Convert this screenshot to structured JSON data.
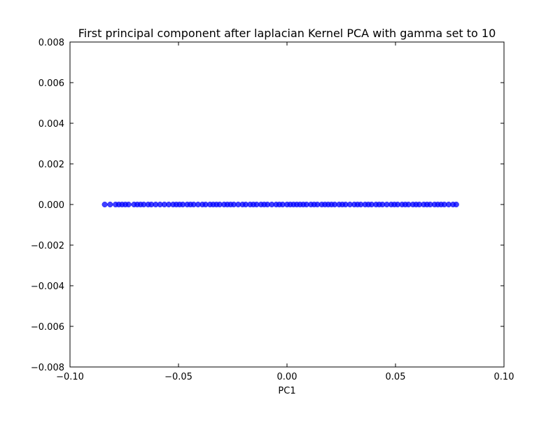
{
  "chart_data": {
    "type": "scatter",
    "title": "First principal component after laplacian Kernel PCA with gamma set to 10",
    "xlabel": "PC1",
    "ylabel": "",
    "xlim": [
      -0.1,
      0.1
    ],
    "ylim": [
      -0.008,
      0.008
    ],
    "xticks": [
      -0.1,
      -0.05,
      0.0,
      0.05,
      0.1
    ],
    "xtick_labels": [
      "−0.10",
      "−0.05",
      "0.00",
      "0.05",
      "0.10"
    ],
    "yticks": [
      0.008,
      0.006,
      0.004,
      0.002,
      0.0,
      -0.002,
      -0.004,
      -0.006,
      -0.008
    ],
    "ytick_labels": [
      "0.008",
      "0.006",
      "0.004",
      "0.002",
      "0.000",
      "−0.002",
      "−0.004",
      "−0.006",
      "−0.008"
    ],
    "grid": false,
    "legend": "none",
    "marker_color": "#0000ff",
    "x_range_of_points": [
      -0.084,
      0.078
    ],
    "points": {
      "x": [
        -0.084,
        -0.0815,
        -0.079,
        -0.0775,
        -0.076,
        -0.0745,
        -0.073,
        -0.0705,
        -0.069,
        -0.0675,
        -0.066,
        -0.064,
        -0.0625,
        -0.0605,
        -0.0585,
        -0.0565,
        -0.0545,
        -0.0525,
        -0.051,
        -0.0495,
        -0.048,
        -0.046,
        -0.0445,
        -0.043,
        -0.041,
        -0.039,
        -0.0375,
        -0.0355,
        -0.034,
        -0.0325,
        -0.031,
        -0.029,
        -0.0275,
        -0.026,
        -0.0245,
        -0.0225,
        -0.0205,
        -0.019,
        -0.017,
        -0.0155,
        -0.014,
        -0.012,
        -0.0105,
        -0.009,
        -0.007,
        -0.005,
        -0.0035,
        -0.002,
        0.0,
        0.0015,
        0.003,
        0.0045,
        0.006,
        0.0075,
        0.009,
        0.011,
        0.0125,
        0.014,
        0.016,
        0.0175,
        0.019,
        0.0205,
        0.022,
        0.024,
        0.0255,
        0.027,
        0.029,
        0.031,
        0.0325,
        0.034,
        0.036,
        0.0375,
        0.039,
        0.041,
        0.0425,
        0.044,
        0.046,
        0.048,
        0.0495,
        0.051,
        0.053,
        0.0545,
        0.056,
        0.058,
        0.0595,
        0.061,
        0.063,
        0.0645,
        0.066,
        0.068,
        0.0695,
        0.071,
        0.0725,
        0.0745,
        0.0765,
        0.078
      ],
      "y": [
        0,
        0,
        0,
        0,
        0,
        0,
        0,
        0,
        0,
        0,
        0,
        0,
        0,
        0,
        0,
        0,
        0,
        0,
        0,
        0,
        0,
        0,
        0,
        0,
        0,
        0,
        0,
        0,
        0,
        0,
        0,
        0,
        0,
        0,
        0,
        0,
        0,
        0,
        0,
        0,
        0,
        0,
        0,
        0,
        0,
        0,
        0,
        0,
        0,
        0,
        0,
        0,
        0,
        0,
        0,
        0,
        0,
        0,
        0,
        0,
        0,
        0,
        0,
        0,
        0,
        0,
        0,
        0,
        0,
        0,
        0,
        0,
        0,
        0,
        0,
        0,
        0,
        0,
        0,
        0,
        0,
        0,
        0,
        0,
        0,
        0,
        0,
        0,
        0,
        0,
        0,
        0,
        0,
        0,
        0,
        0
      ]
    }
  }
}
